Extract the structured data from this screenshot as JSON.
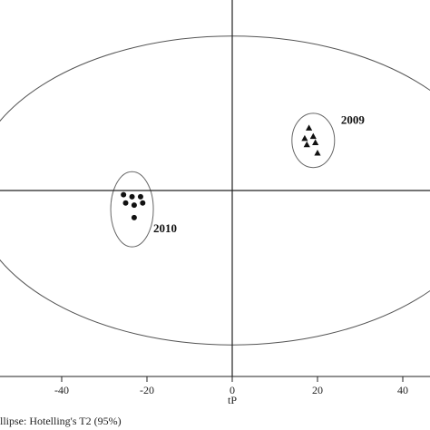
{
  "chart_data": {
    "type": "scatter",
    "title": "",
    "xlabel": "tP",
    "ylabel": "",
    "xlim": [
      -54,
      46
    ],
    "ylim": [
      -40,
      44
    ],
    "x_ticks": [
      -40,
      -20,
      0,
      20,
      40
    ],
    "x_tick_labels": [
      "-40",
      "-20",
      "0",
      "20",
      "40"
    ],
    "grid": false,
    "series": [
      {
        "name": "2009",
        "marker": "triangle",
        "x": [
          18.0,
          17.0,
          19.0,
          17.5,
          19.5,
          20.0
        ],
        "y": [
          15.0,
          12.5,
          13.0,
          11.0,
          11.5,
          9.0
        ]
      },
      {
        "name": "2010",
        "marker": "circle",
        "x": [
          -25.5,
          -23.5,
          -21.5,
          -25.0,
          -23.0,
          -21.0,
          -23.0
        ],
        "y": [
          -1.0,
          -1.5,
          -1.5,
          -3.0,
          -3.5,
          -3.0,
          -6.5
        ]
      }
    ],
    "group_ellipses": [
      {
        "label": "2009",
        "cx": 19.0,
        "cy": 12.0,
        "rx": 5.0,
        "ry": 6.5
      },
      {
        "label": "2010",
        "cx": -23.5,
        "cy": -4.5,
        "rx": 5.0,
        "ry": 9.0
      }
    ],
    "confidence_ellipse": {
      "cx": 0,
      "cy": 0,
      "rx": 61,
      "ry": 37
    },
    "footnote": "llipse: Hotelling's T2 (95%)"
  }
}
